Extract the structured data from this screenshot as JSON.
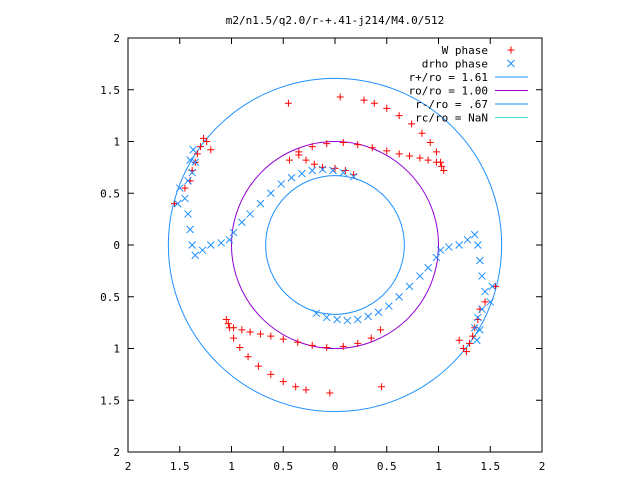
{
  "chart_data": {
    "type": "scatter",
    "title": "m2/n1.5/q2.0/r-+.41-j214/M4.0/512",
    "xlabel": "",
    "ylabel": "",
    "xlim": [
      -2,
      2
    ],
    "ylim": [
      -2,
      2
    ],
    "xticks": [
      -2,
      -1.5,
      -1,
      -0.5,
      0,
      0.5,
      1,
      1.5,
      2
    ],
    "yticks": [
      -2,
      -1.5,
      -1,
      -0.5,
      0,
      0.5,
      1,
      1.5,
      2
    ],
    "xtick_labels": [
      "2",
      "1.5",
      "1",
      "0.5",
      "0",
      "0.5",
      "1",
      "1.5",
      "2"
    ],
    "ytick_labels": [
      "2",
      "1.5",
      "1",
      "0.5",
      "0",
      "0.5",
      "1",
      "1.5",
      "2"
    ],
    "grid": false,
    "legend_position": "top-right",
    "legend": [
      {
        "label": "W phase",
        "marker": "+",
        "color": "#ff0000"
      },
      {
        "label": "drho phase",
        "marker": "x",
        "color": "#1e90ff"
      },
      {
        "label": "r+/ro = 1.61",
        "marker": "line",
        "color": "#1e90ff"
      },
      {
        "label": "ro/ro = 1.00",
        "marker": "line",
        "color": "#9400d3"
      },
      {
        "label": "r-/ro = .67",
        "marker": "line",
        "color": "#1e90ff"
      },
      {
        "label": "rc/ro = NaN",
        "marker": "line",
        "color": "#40e0d0"
      }
    ],
    "circles": [
      {
        "name": "r+/ro = 1.61",
        "r": 1.61,
        "color": "#1e90ff"
      },
      {
        "name": "ro/ro = 1.00",
        "r": 1.0,
        "color": "#9400d3"
      },
      {
        "name": "r-/ro = .67",
        "r": 0.67,
        "color": "#1e90ff"
      }
    ],
    "series": [
      {
        "name": "W phase",
        "color": "#ff0000",
        "marker": "+",
        "points": [
          [
            -0.44,
            0.82
          ],
          [
            -0.35,
            0.9
          ],
          [
            -0.22,
            0.95
          ],
          [
            -0.08,
            0.98
          ],
          [
            0.08,
            0.99
          ],
          [
            0.22,
            0.97
          ],
          [
            0.36,
            0.94
          ],
          [
            0.5,
            0.91
          ],
          [
            0.62,
            0.88
          ],
          [
            0.72,
            0.86
          ],
          [
            0.82,
            0.84
          ],
          [
            0.9,
            0.82
          ],
          [
            0.98,
            0.8
          ],
          [
            1.03,
            0.76
          ],
          [
            1.05,
            0.72
          ],
          [
            1.02,
            0.8
          ],
          [
            0.98,
            0.9
          ],
          [
            0.92,
            0.99
          ],
          [
            0.84,
            1.08
          ],
          [
            0.74,
            1.17
          ],
          [
            0.62,
            1.25
          ],
          [
            0.5,
            1.32
          ],
          [
            0.38,
            1.37
          ],
          [
            0.28,
            1.4
          ],
          [
            -0.35,
            0.87
          ],
          [
            -0.28,
            0.82
          ],
          [
            -0.2,
            0.78
          ],
          [
            -0.12,
            0.75
          ],
          [
            0.0,
            0.74
          ],
          [
            0.1,
            0.72
          ],
          [
            0.18,
            0.68
          ],
          [
            0.44,
            -0.82
          ],
          [
            0.35,
            -0.9
          ],
          [
            0.22,
            -0.95
          ],
          [
            0.08,
            -0.98
          ],
          [
            -0.08,
            -0.99
          ],
          [
            -0.22,
            -0.97
          ],
          [
            -0.36,
            -0.94
          ],
          [
            -0.5,
            -0.91
          ],
          [
            -0.62,
            -0.88
          ],
          [
            -0.72,
            -0.86
          ],
          [
            -0.82,
            -0.84
          ],
          [
            -0.9,
            -0.82
          ],
          [
            -0.98,
            -0.8
          ],
          [
            -1.03,
            -0.76
          ],
          [
            -1.05,
            -0.72
          ],
          [
            -1.02,
            -0.8
          ],
          [
            -0.98,
            -0.9
          ],
          [
            -0.92,
            -0.99
          ],
          [
            -0.84,
            -1.08
          ],
          [
            -0.74,
            -1.17
          ],
          [
            -0.62,
            -1.25
          ],
          [
            -0.5,
            -1.32
          ],
          [
            -0.38,
            -1.37
          ],
          [
            -0.28,
            -1.4
          ],
          [
            -1.27,
            1.03
          ],
          [
            -1.24,
            1.0
          ],
          [
            -1.3,
            0.95
          ],
          [
            -1.33,
            0.88
          ],
          [
            -1.35,
            0.8
          ],
          [
            -1.38,
            0.72
          ],
          [
            -1.4,
            0.62
          ],
          [
            -1.45,
            0.55
          ],
          [
            -1.55,
            0.4
          ],
          [
            -1.2,
            0.92
          ],
          [
            1.27,
            -1.03
          ],
          [
            1.24,
            -1.0
          ],
          [
            1.3,
            -0.95
          ],
          [
            1.33,
            -0.88
          ],
          [
            1.35,
            -0.8
          ],
          [
            1.38,
            -0.72
          ],
          [
            1.4,
            -0.62
          ],
          [
            1.45,
            -0.55
          ],
          [
            1.55,
            -0.4
          ],
          [
            1.2,
            -0.92
          ],
          [
            -0.45,
            1.37
          ],
          [
            0.05,
            1.43
          ],
          [
            0.45,
            -1.37
          ],
          [
            -0.05,
            -1.43
          ]
        ]
      },
      {
        "name": "drho phase",
        "color": "#1e90ff",
        "marker": "x",
        "points": [
          [
            0.18,
            0.66
          ],
          [
            0.08,
            0.7
          ],
          [
            -0.02,
            0.72
          ],
          [
            -0.12,
            0.73
          ],
          [
            -0.22,
            0.72
          ],
          [
            -0.32,
            0.69
          ],
          [
            -0.42,
            0.65
          ],
          [
            -0.52,
            0.59
          ],
          [
            -0.62,
            0.5
          ],
          [
            -0.72,
            0.4
          ],
          [
            -0.82,
            0.3
          ],
          [
            -0.9,
            0.22
          ],
          [
            -0.98,
            0.12
          ],
          [
            -1.02,
            0.05
          ],
          [
            -1.1,
            0.02
          ],
          [
            -1.2,
            0.0
          ],
          [
            -1.28,
            -0.05
          ],
          [
            -1.35,
            -0.1
          ],
          [
            -1.38,
            0.0
          ],
          [
            -1.4,
            0.15
          ],
          [
            -1.42,
            0.3
          ],
          [
            -1.45,
            0.45
          ],
          [
            -1.5,
            0.55
          ],
          [
            -1.38,
            0.7
          ],
          [
            -1.4,
            0.82
          ],
          [
            -1.37,
            0.92
          ],
          [
            -1.35,
            0.8
          ],
          [
            -1.42,
            0.62
          ],
          [
            -1.52,
            0.4
          ],
          [
            -0.18,
            -0.66
          ],
          [
            -0.08,
            -0.7
          ],
          [
            0.02,
            -0.72
          ],
          [
            0.12,
            -0.73
          ],
          [
            0.22,
            -0.72
          ],
          [
            0.32,
            -0.69
          ],
          [
            0.42,
            -0.65
          ],
          [
            0.52,
            -0.59
          ],
          [
            0.62,
            -0.5
          ],
          [
            0.72,
            -0.4
          ],
          [
            0.82,
            -0.3
          ],
          [
            0.9,
            -0.22
          ],
          [
            0.98,
            -0.12
          ],
          [
            1.02,
            -0.05
          ],
          [
            1.1,
            -0.02
          ],
          [
            1.2,
            0.0
          ],
          [
            1.28,
            0.05
          ],
          [
            1.35,
            0.1
          ],
          [
            1.38,
            0.0
          ],
          [
            1.4,
            -0.15
          ],
          [
            1.42,
            -0.3
          ],
          [
            1.45,
            -0.45
          ],
          [
            1.5,
            -0.55
          ],
          [
            1.38,
            -0.7
          ],
          [
            1.4,
            -0.82
          ],
          [
            1.37,
            -0.92
          ],
          [
            1.35,
            -0.8
          ],
          [
            1.42,
            -0.62
          ],
          [
            1.52,
            -0.4
          ]
        ]
      }
    ]
  }
}
